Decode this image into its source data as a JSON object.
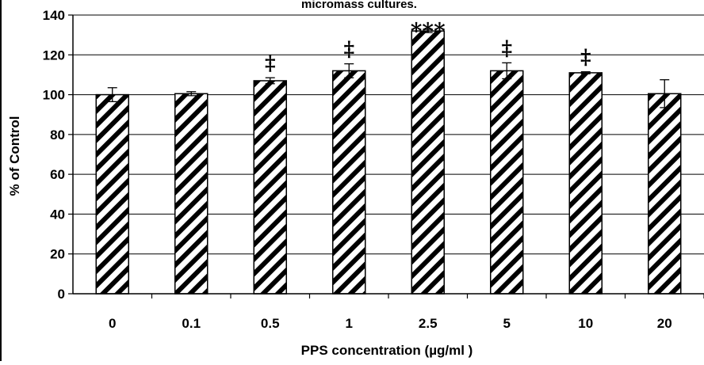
{
  "chart_data": {
    "type": "bar",
    "title": "micromass  cultures.",
    "xlabel": "PPS concentration (µg/ml )",
    "ylabel": "% of Control",
    "categories": [
      "0",
      "0.1",
      "0.5",
      "1",
      "2.5",
      "5",
      "10",
      "20"
    ],
    "values": [
      100,
      100.5,
      107,
      112,
      132,
      112,
      111,
      100.5
    ],
    "errors": [
      3.5,
      1,
      1.5,
      3.5,
      0.8,
      4,
      0.5,
      7
    ],
    "annotations": [
      "",
      "",
      "‡",
      "‡",
      "***",
      "‡",
      "‡",
      ""
    ],
    "ylim": [
      0,
      140
    ],
    "yticks": [
      0,
      20,
      40,
      60,
      80,
      100,
      120,
      140
    ],
    "grid": true,
    "legend": "none",
    "bar_fill": "diagonal-hatch",
    "colors": {
      "bar_stroke": "#000000",
      "hatch": "#000000",
      "grid": "#000000"
    }
  }
}
